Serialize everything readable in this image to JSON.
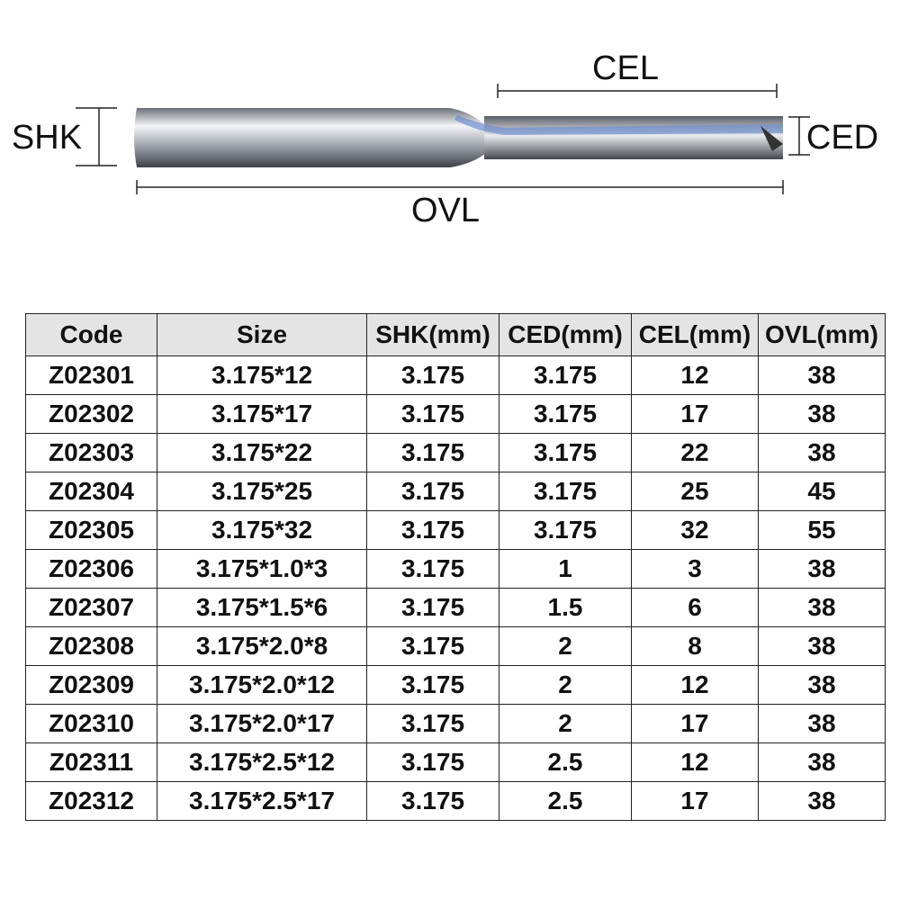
{
  "diagram": {
    "cel": "CEL",
    "shk": "SHK",
    "ced": "CED",
    "ovl": "OVL"
  },
  "table": {
    "header": [
      "Code",
      "Size",
      "SHK(mm)",
      "CED(mm)",
      "CEL(mm)",
      "OVL(mm)"
    ],
    "rows": [
      [
        "Z02301",
        "3.175*12",
        "3.175",
        "3.175",
        "12",
        "38"
      ],
      [
        "Z02302",
        "3.175*17",
        "3.175",
        "3.175",
        "17",
        "38"
      ],
      [
        "Z02303",
        "3.175*22",
        "3.175",
        "3.175",
        "22",
        "38"
      ],
      [
        "Z02304",
        "3.175*25",
        "3.175",
        "3.175",
        "25",
        "45"
      ],
      [
        "Z02305",
        "3.175*32",
        "3.175",
        "3.175",
        "32",
        "55"
      ],
      [
        "Z02306",
        "3.175*1.0*3",
        "3.175",
        "1",
        "3",
        "38"
      ],
      [
        "Z02307",
        "3.175*1.5*6",
        "3.175",
        "1.5",
        "6",
        "38"
      ],
      [
        "Z02308",
        "3.175*2.0*8",
        "3.175",
        "2",
        "8",
        "38"
      ],
      [
        "Z02309",
        "3.175*2.0*12",
        "3.175",
        "2",
        "12",
        "38"
      ],
      [
        "Z02310",
        "3.175*2.0*17",
        "3.175",
        "2",
        "17",
        "38"
      ],
      [
        "Z02311",
        "3.175*2.5*12",
        "3.175",
        "2.5",
        "12",
        "38"
      ],
      [
        "Z02312",
        "3.175*2.5*17",
        "3.175",
        "2.5",
        "17",
        "38"
      ]
    ]
  }
}
